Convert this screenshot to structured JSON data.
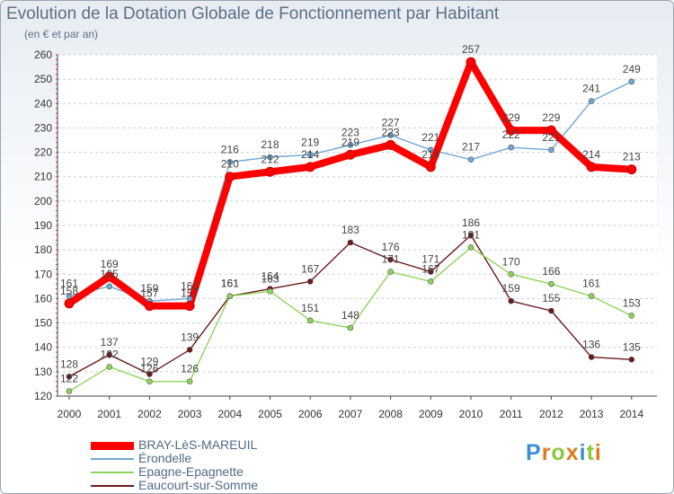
{
  "chart_data": {
    "type": "line",
    "title": "Evolution de la Dotation Globale de Fonctionnement par Habitant",
    "subtitle": "(en € et par an)",
    "xlabel": "",
    "ylabel": "",
    "x": [
      "2000",
      "2001",
      "2002",
      "2003",
      "2004",
      "2005",
      "2006",
      "2007",
      "2008",
      "2009",
      "2010",
      "2011",
      "2012",
      "2013",
      "2014"
    ],
    "ylim": [
      120,
      260
    ],
    "yticks": [
      "120",
      "130",
      "140",
      "150",
      "160",
      "170",
      "180",
      "190",
      "200",
      "210",
      "220",
      "230",
      "240",
      "250",
      "260"
    ],
    "grid": "horizontal-dashed",
    "legend_position": "bottom-left",
    "series": [
      {
        "name": "BRAY-LèS-MAREUIL",
        "color": "#ff0000",
        "values": [
          158,
          169,
          157,
          157,
          210,
          212,
          214,
          219,
          223,
          214,
          257,
          229,
          229,
          214,
          213
        ]
      },
      {
        "name": "Érondelle",
        "color": "#6fa8d6",
        "values": [
          161,
          165,
          159,
          160,
          216,
          218,
          219,
          223,
          227,
          221,
          217,
          222,
          221,
          241,
          249
        ]
      },
      {
        "name": "Epagne-Epagnette",
        "color": "#8fd45a",
        "values": [
          122,
          132,
          126,
          126,
          161,
          163,
          151,
          148,
          171,
          167,
          181,
          170,
          166,
          161,
          153
        ]
      },
      {
        "name": "Eaucourt-sur-Somme",
        "color": "#6b1a1a",
        "values": [
          128,
          137,
          129,
          139,
          161,
          164,
          167,
          183,
          176,
          171,
          186,
          159,
          155,
          136,
          135
        ]
      }
    ]
  },
  "logo": {
    "text": "Proxiti",
    "letters": [
      "P",
      "r",
      "o",
      "x",
      "i",
      "t",
      "i"
    ],
    "colors": [
      "#3a8fd8",
      "#e07a1f",
      "#8cc63f",
      "#e07a1f",
      "#3a8fd8",
      "#8cc63f",
      "#e07a1f"
    ]
  }
}
